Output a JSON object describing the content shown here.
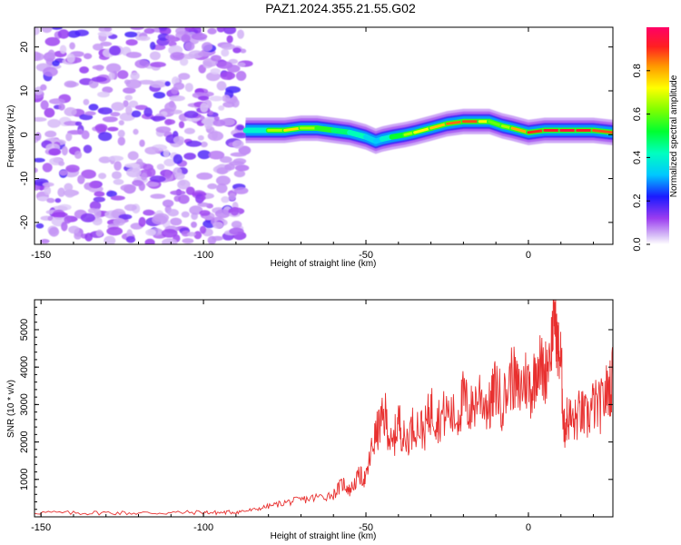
{
  "title": "PAZ1.2024.355.21.55.G02",
  "chart_data": [
    {
      "type": "heatmap",
      "title": "PAZ1.2024.355.21.55.G02",
      "xlabel": "Height of straight line (km)",
      "ylabel": "Frequency (Hz)",
      "xlim": [
        -152,
        26
      ],
      "ylim": [
        -25,
        24.5
      ],
      "xticks": [
        -150,
        -100,
        -50,
        0
      ],
      "yticks": [
        -20,
        -10,
        0,
        10,
        20
      ],
      "noise_region_x": [
        -152,
        -87
      ],
      "ridge": {
        "x": [
          -87,
          -80,
          -75,
          -70,
          -65,
          -60,
          -55,
          -50,
          -47,
          -45,
          -42,
          -38,
          -35,
          -30,
          -25,
          -20,
          -15,
          -12,
          -8,
          -5,
          0,
          5,
          10,
          15,
          20,
          26
        ],
        "freq": [
          1,
          1,
          1,
          1.5,
          1.5,
          1,
          0.5,
          -0.5,
          -1.5,
          -1,
          -0.5,
          0,
          0.5,
          1.5,
          2.5,
          3,
          3,
          3,
          2,
          1.5,
          0.5,
          1,
          1,
          1,
          1,
          0.5
        ],
        "amplitude": [
          0.3,
          0.5,
          0.8,
          0.7,
          0.6,
          0.5,
          0.45,
          0.4,
          0.3,
          0.35,
          0.45,
          0.6,
          0.7,
          0.75,
          0.8,
          0.9,
          0.85,
          0.6,
          0.6,
          0.7,
          0.9,
          0.9,
          0.95,
          0.95,
          0.9,
          0.85
        ]
      },
      "colorbar": {
        "label": "Normalized spectral amplitude",
        "ticks": [
          "0.0",
          "0.2",
          "0.4",
          "0.6",
          "0.8"
        ],
        "range": [
          0,
          1
        ]
      }
    },
    {
      "type": "line",
      "xlabel": "Height of straight line (km)",
      "ylabel": "SNR (10 * v/v)",
      "xlim": [
        -152,
        26
      ],
      "ylim": [
        0,
        5800
      ],
      "xticks": [
        -150,
        -100,
        -50,
        0
      ],
      "yticks": [
        1000,
        2000,
        3000,
        4000,
        5000
      ],
      "color": "#e8302f",
      "series": [
        {
          "x": [
            -152,
            -140,
            -130,
            -120,
            -110,
            -100,
            -95,
            -90,
            -85,
            -80,
            -75,
            -70,
            -65,
            -60,
            -57,
            -55,
            -52,
            -50,
            -48,
            -46,
            -44,
            -42,
            -40,
            -38,
            -35,
            -32,
            -30,
            -28,
            -25,
            -22,
            -20,
            -18,
            -15,
            -12,
            -10,
            -8,
            -5,
            -3,
            -1,
            1,
            3,
            5,
            7,
            8,
            9,
            10,
            11,
            12,
            14,
            16,
            18,
            20,
            22,
            24,
            26
          ],
          "y": [
            120,
            100,
            110,
            100,
            110,
            120,
            110,
            130,
            180,
            280,
            380,
            450,
            520,
            600,
            900,
            700,
            1100,
            1000,
            1900,
            2400,
            2700,
            1800,
            2600,
            2000,
            2500,
            2300,
            2900,
            2600,
            2800,
            2600,
            3200,
            2800,
            3300,
            2900,
            3500,
            3000,
            3800,
            3300,
            3700,
            3400,
            4200,
            3800,
            4600,
            5500,
            4500,
            4200,
            2300,
            2700,
            2500,
            2800,
            2600,
            3000,
            2900,
            3300,
            3700
          ]
        }
      ]
    }
  ]
}
